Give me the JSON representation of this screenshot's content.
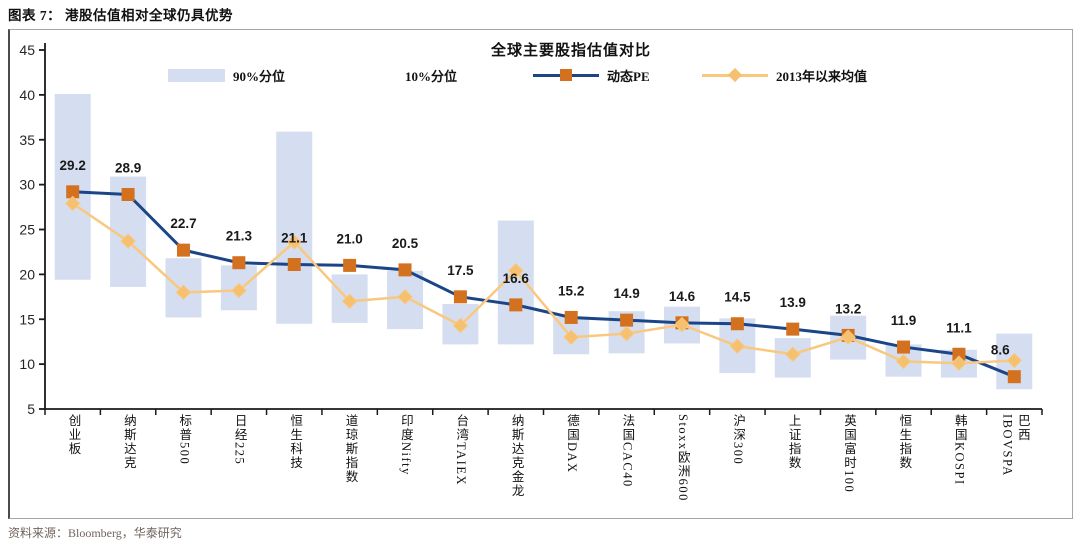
{
  "header": {
    "title": "图表 7：  港股估值相对全球仍具优势"
  },
  "footer": {
    "source": "资料来源：Bloomberg，华泰研究"
  },
  "chart_data": {
    "type": "combo (floating range bars + two marker lines)",
    "title": "全球主要股指估值对比",
    "legend": {
      "p90": "90%分位",
      "p10": "10%分位",
      "pe": "动态PE",
      "mean": "2013年以来均值"
    },
    "legend_position": "top",
    "grid": false,
    "categories": [
      "创业板",
      "纳斯达克",
      "标普500",
      "日经225",
      "恒生科技",
      "道琼斯指数",
      "印度Nifty",
      "台湾TAIEX",
      "纳斯达克金龙",
      "德国DAX",
      "法国CAC40",
      "Stoxx欧洲600",
      "沪深300",
      "上证指数",
      "英国富时100",
      "恒生指数",
      "韩国KOSPI",
      "巴西IBOVSPA"
    ],
    "categories_display": [
      "创业板",
      "纳斯达克",
      "标普500",
      "日经225",
      "恒生科技",
      "道琼斯指数",
      "印度Nifty",
      "台湾TAIEX",
      "纳斯达克金龙",
      "德国DAX",
      "法国CAC40",
      "Stoxx欧洲600",
      "沪深300",
      "上证指数",
      "英国富时100",
      "恒生指数",
      "韩国KOSPI",
      "巴西\nIBOVSPA"
    ],
    "series": [
      {
        "name": "动态PE",
        "type": "line",
        "marker": "square",
        "values": [
          29.2,
          28.9,
          22.7,
          21.3,
          21.1,
          21.0,
          20.5,
          17.5,
          16.6,
          15.2,
          14.9,
          14.6,
          14.5,
          13.9,
          13.2,
          11.9,
          11.1,
          8.6
        ]
      },
      {
        "name": "2013年以来均值",
        "type": "line",
        "marker": "diamond",
        "values": [
          27.9,
          23.7,
          18.0,
          18.2,
          23.6,
          17.0,
          17.5,
          14.3,
          20.4,
          13.0,
          13.4,
          14.4,
          12.0,
          11.1,
          13.0,
          10.3,
          10.1,
          10.4
        ]
      },
      {
        "name": "90%-10%分位区间",
        "type": "range-bar",
        "p90": [
          40.1,
          30.9,
          21.8,
          21.0,
          35.9,
          20.0,
          20.4,
          16.7,
          26.0,
          15.3,
          15.9,
          16.4,
          15.1,
          12.9,
          15.4,
          12.2,
          11.6,
          13.4
        ],
        "p10": [
          19.4,
          18.6,
          15.2,
          16.0,
          14.5,
          14.6,
          13.9,
          12.2,
          12.2,
          11.1,
          11.2,
          12.3,
          9.0,
          8.5,
          10.5,
          8.6,
          8.5,
          7.2
        ]
      }
    ],
    "value_labels": [
      "29.2",
      "28.9",
      "22.7",
      "21.3",
      "21.1",
      "21.0",
      "20.5",
      "17.5",
      "16.6",
      "15.2",
      "14.9",
      "14.6",
      "14.5",
      "13.9",
      "13.2",
      "11.9",
      "11.1",
      "8.6"
    ],
    "ylim": [
      5,
      45
    ],
    "yticks": [
      45,
      40,
      35,
      30,
      25,
      20,
      15,
      10,
      5
    ],
    "colors": {
      "bar": "#D4DEF0",
      "pe_line": "#1C4587",
      "pe_marker": "#D4711F",
      "mean_line": "#F9C87E",
      "mean_marker": "#F5C170",
      "axis": "#1a1a1a",
      "label": "#1a1a1a"
    }
  }
}
